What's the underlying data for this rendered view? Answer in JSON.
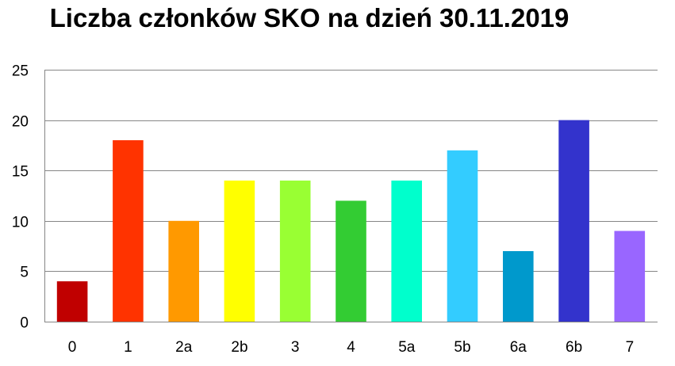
{
  "chart_data": {
    "type": "bar",
    "title": "Liczba członków SKO na dzień 30.11.2019",
    "xlabel": "",
    "ylabel": "",
    "categories": [
      "0",
      "1",
      "2a",
      "2b",
      "3",
      "4",
      "5a",
      "5b",
      "6a",
      "6b",
      "7"
    ],
    "values": [
      4,
      18,
      10,
      14,
      14,
      12,
      14,
      17,
      7,
      20,
      9
    ],
    "colors": [
      "#C00000",
      "#FF3300",
      "#FF9900",
      "#FFFF00",
      "#99FF33",
      "#33CC33",
      "#00FFCC",
      "#33CCFF",
      "#0099CC",
      "#3333CC",
      "#9966FF"
    ],
    "ylim": [
      0,
      25
    ],
    "yticks": [
      "0",
      "5",
      "10",
      "15",
      "20",
      "25"
    ],
    "grid": true,
    "legend": "none"
  }
}
